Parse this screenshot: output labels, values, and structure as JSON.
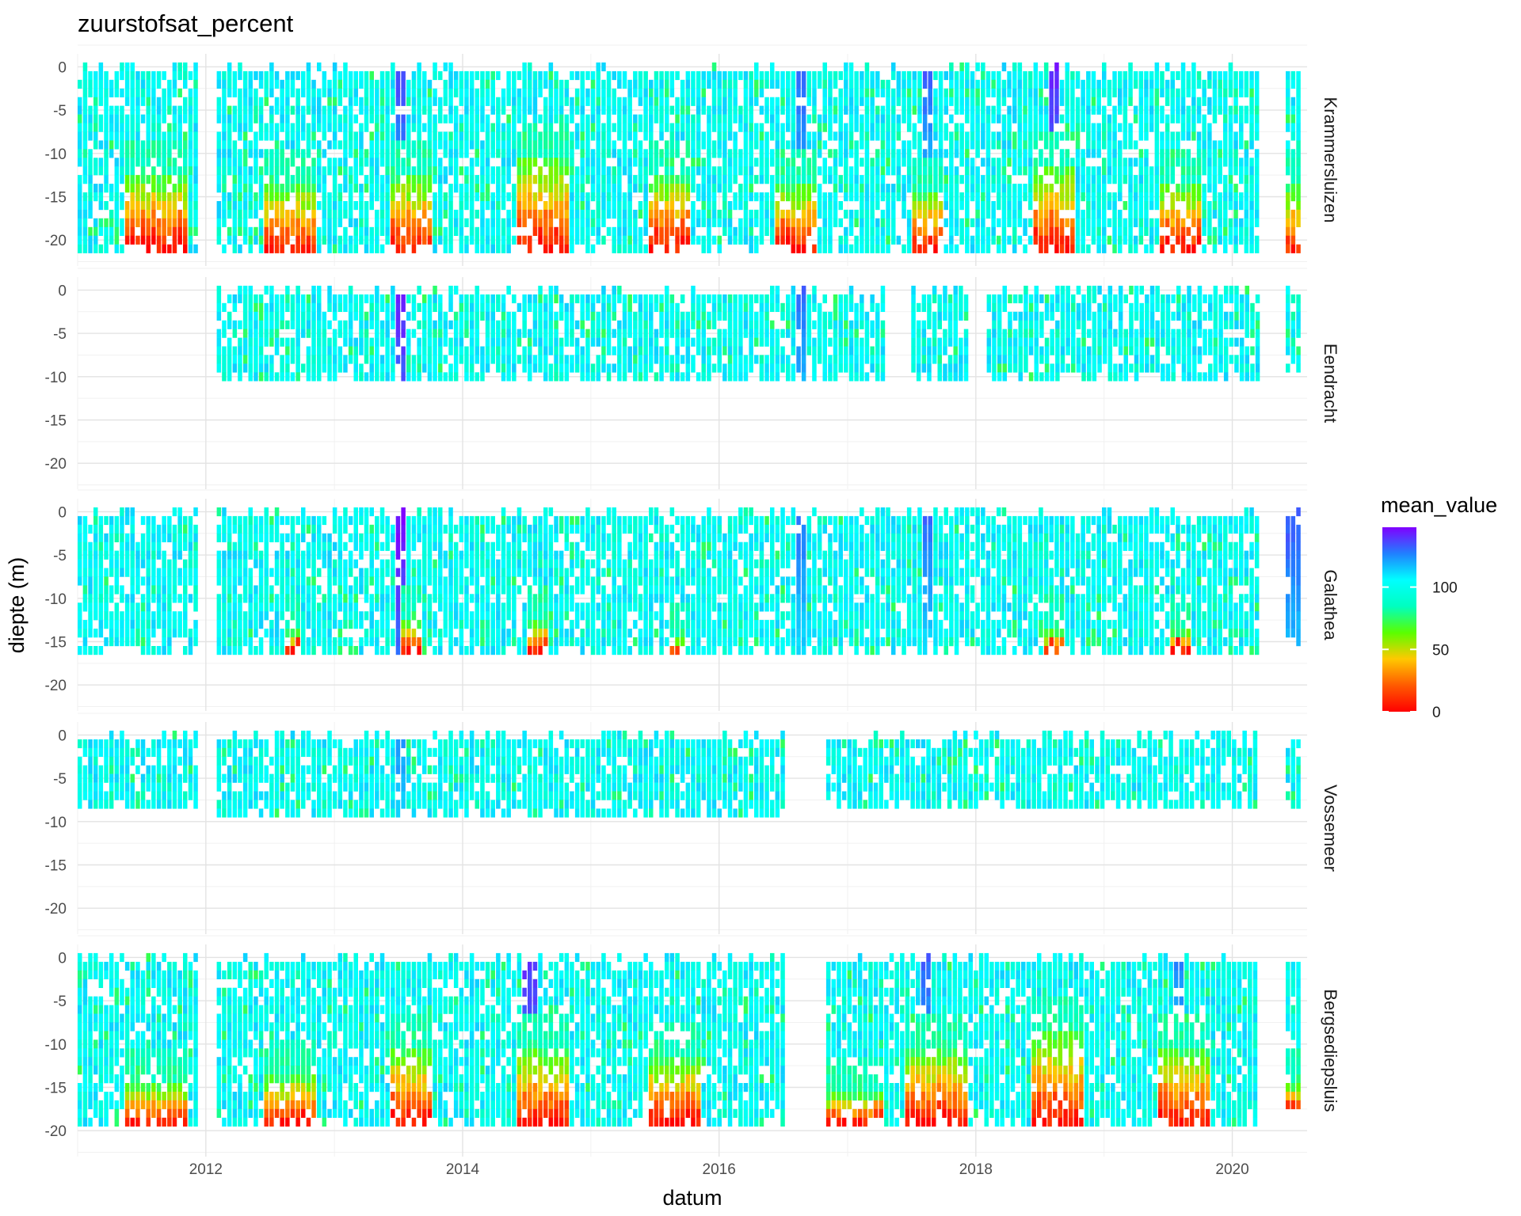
{
  "chart_data": {
    "type": "heatmap",
    "title": "zuurstofsat_percent",
    "xlabel": "datum",
    "ylabel": "diepte (m)",
    "x_range": [
      "2011-01-01",
      "2020-08-01"
    ],
    "x_ticks": [
      {
        "date": "2012-01-01",
        "label": "2012"
      },
      {
        "date": "2014-01-01",
        "label": "2014"
      },
      {
        "date": "2016-01-01",
        "label": "2016"
      },
      {
        "date": "2018-01-01",
        "label": "2018"
      },
      {
        "date": "2020-01-01",
        "label": "2020"
      }
    ],
    "y_ticks": [
      0,
      -5,
      -10,
      -15,
      -20
    ],
    "ylim": [
      -23,
      1.5
    ],
    "grid": true,
    "legend": {
      "title": "mean_value",
      "position": "right",
      "range": [
        0,
        148
      ],
      "ticks": [
        0,
        50,
        100
      ],
      "colors": [
        "#ff0000",
        "#ff5a00",
        "#ffc800",
        "#5aff00",
        "#00ffc0",
        "#00ffff",
        "#2080ff",
        "#8000ff"
      ]
    },
    "panels": [
      {
        "name": "Krammersluizen",
        "segments": [
          {
            "start": "2011-01-01",
            "end": "2011-12-01",
            "max_depth": -21
          },
          {
            "start": "2012-02-01",
            "end": "2020-03-15",
            "max_depth": -21
          },
          {
            "start": "2020-06-01",
            "end": "2020-07-10",
            "max_depth": -21
          }
        ],
        "low_oxygen_spells": [
          {
            "start": "2011-05-15",
            "end": "2011-11-01",
            "from_depth": -13,
            "min_value": 2
          },
          {
            "start": "2012-06-01",
            "end": "2012-10-31",
            "from_depth": -14,
            "min_value": 5
          },
          {
            "start": "2013-06-01",
            "end": "2013-09-30",
            "from_depth": -13,
            "min_value": 5
          },
          {
            "start": "2014-06-01",
            "end": "2014-10-31",
            "from_depth": -11,
            "min_value": 5
          },
          {
            "start": "2015-06-01",
            "end": "2015-09-30",
            "from_depth": -13,
            "min_value": 5
          },
          {
            "start": "2016-06-01",
            "end": "2016-09-30",
            "from_depth": -14,
            "min_value": 5
          },
          {
            "start": "2017-07-01",
            "end": "2017-09-30",
            "from_depth": -15,
            "min_value": 5
          },
          {
            "start": "2018-06-01",
            "end": "2018-09-30",
            "from_depth": -12,
            "min_value": 5
          },
          {
            "start": "2019-06-01",
            "end": "2019-09-30",
            "from_depth": -14,
            "min_value": 5
          },
          {
            "start": "2020-06-01",
            "end": "2020-07-10",
            "from_depth": -14,
            "min_value": 10
          }
        ],
        "high_oxygen_spells": [
          {
            "start": "2013-06-15",
            "end": "2013-07-20",
            "value": 135
          },
          {
            "start": "2016-08-01",
            "end": "2016-09-05",
            "value": 130
          },
          {
            "start": "2017-07-20",
            "end": "2017-08-20",
            "value": 130
          },
          {
            "start": "2018-07-20",
            "end": "2018-08-15",
            "value": 140
          }
        ]
      },
      {
        "name": "Eendracht",
        "segments": [
          {
            "start": "2012-02-01",
            "end": "2017-04-15",
            "max_depth": -10
          },
          {
            "start": "2017-07-01",
            "end": "2017-12-10",
            "max_depth": -10
          },
          {
            "start": "2018-02-01",
            "end": "2020-03-15",
            "max_depth": -10
          },
          {
            "start": "2020-06-01",
            "end": "2020-07-10",
            "max_depth": -9
          }
        ],
        "low_oxygen_spells": [],
        "high_oxygen_spells": [
          {
            "start": "2013-06-15",
            "end": "2013-07-20",
            "value": 142
          },
          {
            "start": "2016-08-01",
            "end": "2016-09-05",
            "value": 128
          }
        ]
      },
      {
        "name": "Galathea",
        "segments": [
          {
            "start": "2011-01-01",
            "end": "2011-12-01",
            "max_depth": -16
          },
          {
            "start": "2012-02-01",
            "end": "2020-03-15",
            "max_depth": -16
          },
          {
            "start": "2020-06-01",
            "end": "2020-07-10",
            "max_depth": -15
          }
        ],
        "low_oxygen_spells": [
          {
            "start": "2012-08-01",
            "end": "2012-09-15",
            "from_depth": -14,
            "min_value": 12
          },
          {
            "start": "2013-07-01",
            "end": "2013-08-31",
            "from_depth": -13,
            "min_value": 8
          },
          {
            "start": "2014-07-01",
            "end": "2014-08-31",
            "from_depth": -13,
            "min_value": 10
          },
          {
            "start": "2015-08-01",
            "end": "2015-09-15",
            "from_depth": -15,
            "min_value": 15
          },
          {
            "start": "2018-07-01",
            "end": "2018-08-31",
            "from_depth": -14,
            "min_value": 20
          },
          {
            "start": "2019-07-01",
            "end": "2019-08-31",
            "from_depth": -14,
            "min_value": 10
          }
        ],
        "high_oxygen_spells": [
          {
            "start": "2013-06-15",
            "end": "2013-07-20",
            "value": 145
          },
          {
            "start": "2016-08-01",
            "end": "2016-09-05",
            "value": 128
          },
          {
            "start": "2017-07-20",
            "end": "2017-08-20",
            "value": 128
          },
          {
            "start": "2020-06-01",
            "end": "2020-07-10",
            "value": 132
          }
        ]
      },
      {
        "name": "Vossemeer",
        "segments": [
          {
            "start": "2011-01-01",
            "end": "2011-12-01",
            "max_depth": -8
          },
          {
            "start": "2012-02-01",
            "end": "2016-07-01",
            "max_depth": -9
          },
          {
            "start": "2016-11-01",
            "end": "2020-03-15",
            "max_depth": -8
          },
          {
            "start": "2020-06-01",
            "end": "2020-07-10",
            "max_depth": -8
          }
        ],
        "low_oxygen_spells": [],
        "high_oxygen_spells": [
          {
            "start": "2013-06-15",
            "end": "2013-07-20",
            "value": 122
          }
        ]
      },
      {
        "name": "Bergsediepsluis",
        "segments": [
          {
            "start": "2011-01-01",
            "end": "2011-12-01",
            "max_depth": -19
          },
          {
            "start": "2012-02-01",
            "end": "2016-07-01",
            "max_depth": -19
          },
          {
            "start": "2016-11-01",
            "end": "2020-03-15",
            "max_depth": -19
          },
          {
            "start": "2020-06-01",
            "end": "2020-07-10",
            "max_depth": -18
          }
        ],
        "low_oxygen_spells": [
          {
            "start": "2011-05-15",
            "end": "2011-11-01",
            "from_depth": -15,
            "min_value": 5
          },
          {
            "start": "2012-06-01",
            "end": "2012-10-31",
            "from_depth": -14,
            "min_value": 5
          },
          {
            "start": "2013-06-01",
            "end": "2013-09-30",
            "from_depth": -11,
            "min_value": 5
          },
          {
            "start": "2014-06-01",
            "end": "2014-10-31",
            "from_depth": -11,
            "min_value": 5
          },
          {
            "start": "2015-06-01",
            "end": "2015-10-31",
            "from_depth": -12,
            "min_value": 5
          },
          {
            "start": "2016-11-01",
            "end": "2017-03-31",
            "from_depth": -16,
            "min_value": 5
          },
          {
            "start": "2017-06-01",
            "end": "2017-12-10",
            "from_depth": -11,
            "min_value": 5
          },
          {
            "start": "2018-06-01",
            "end": "2018-10-31",
            "from_depth": -9,
            "min_value": 5
          },
          {
            "start": "2019-06-01",
            "end": "2019-10-31",
            "from_depth": -11,
            "min_value": 5
          },
          {
            "start": "2020-06-01",
            "end": "2020-07-10",
            "from_depth": -15,
            "min_value": 5
          }
        ],
        "high_oxygen_spells": [
          {
            "start": "2014-06-15",
            "end": "2014-07-20",
            "value": 138
          },
          {
            "start": "2017-07-20",
            "end": "2017-08-20",
            "value": 130
          },
          {
            "start": "2019-07-15",
            "end": "2019-08-15",
            "value": 125
          }
        ]
      }
    ]
  }
}
